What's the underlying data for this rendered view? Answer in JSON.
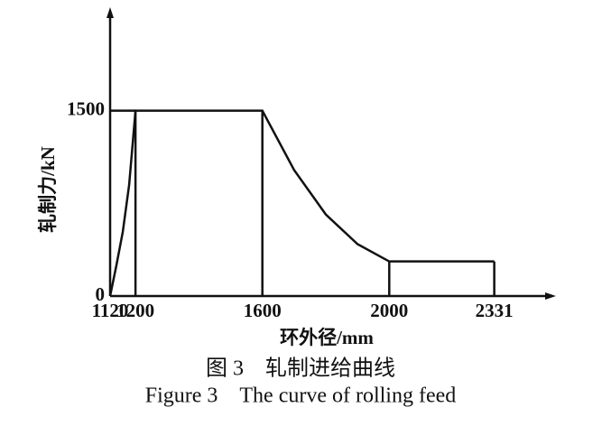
{
  "chart_data": {
    "type": "line",
    "ylabel": "轧制力/kN",
    "xlabel": "环外径/mm",
    "caption_cn": "图 3　轧制进给曲线",
    "caption_en": "Figure 3　The curve of rolling feed",
    "xlim": [
      1120,
      2480
    ],
    "ylim": [
      0,
      2250
    ],
    "xticks": [
      1120,
      1200,
      1600,
      2000,
      2331
    ],
    "yticks": [
      0,
      1500
    ],
    "color": "#111111",
    "x": [
      1120,
      1140,
      1160,
      1180,
      1200,
      1600,
      1700,
      1800,
      1900,
      2000,
      2331
    ],
    "values": [
      0,
      250,
      520,
      900,
      1500,
      1500,
      1020,
      660,
      420,
      280,
      280
    ]
  }
}
